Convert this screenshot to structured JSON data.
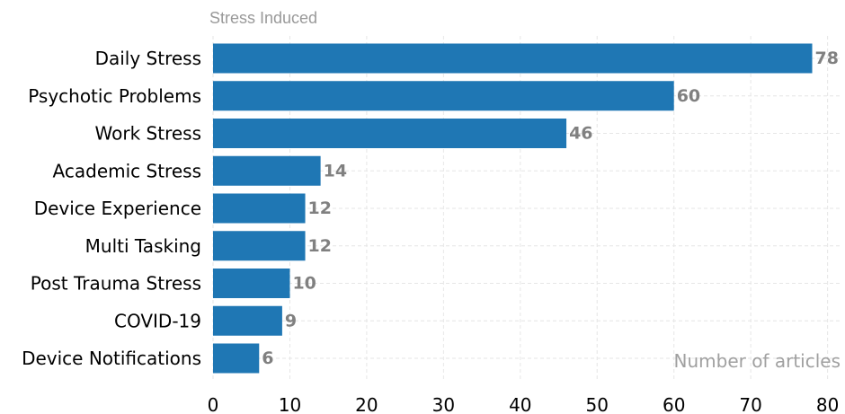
{
  "chart_data": {
    "type": "bar",
    "orientation": "horizontal",
    "title": "Stress Induced",
    "xlabel": "Number of articles",
    "ylabel": "",
    "categories": [
      "Daily Stress",
      "Psychotic Problems",
      "Work Stress",
      "Academic Stress",
      "Device Experience",
      "Multi Tasking",
      "Post Trauma Stress",
      "COVID-19",
      "Device Notifications"
    ],
    "values": [
      78,
      60,
      46,
      14,
      12,
      12,
      10,
      9,
      6
    ],
    "xlim": [
      0,
      81
    ],
    "xticks": [
      0,
      10,
      20,
      30,
      40,
      50,
      60,
      70,
      80
    ],
    "grid": true,
    "bar_color": "#1f77b4",
    "value_label_color": "#808080"
  }
}
